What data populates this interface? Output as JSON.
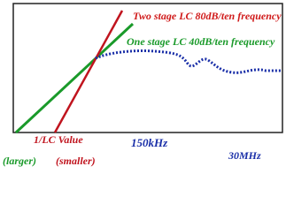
{
  "labels": {
    "two_stage": "Two stage LC  80dB/ten frequency",
    "one_stage": "One stage LC  40dB/ten frequency",
    "lc_value": "1/LC  Value",
    "freq_low": "150kHz",
    "freq_high": "30MHz",
    "larger": "(larger)",
    "smaller": "(smaller)"
  }
}
